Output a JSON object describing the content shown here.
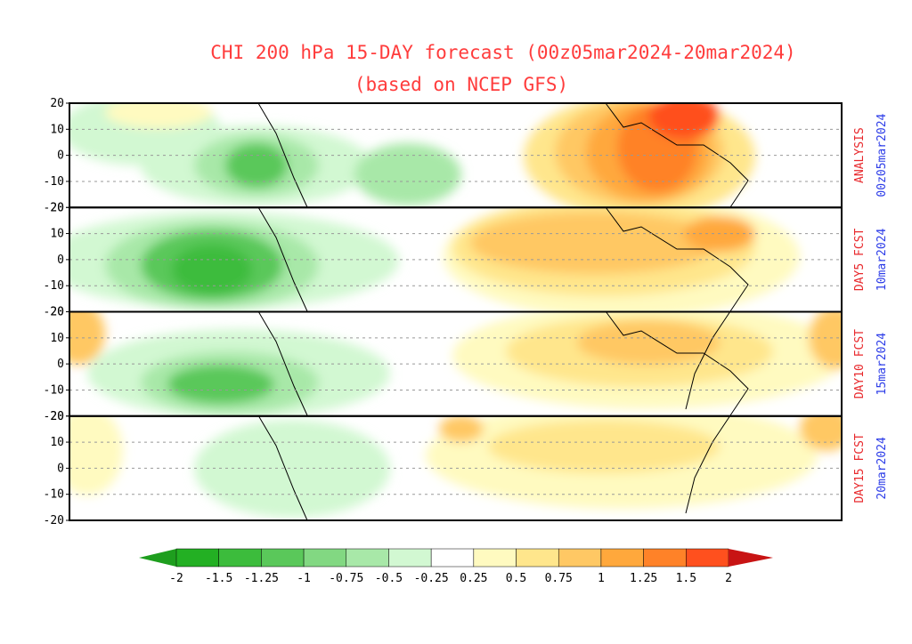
{
  "map": {
    "title": [
      "CHI 200 hPa 15-DAY forecast (00z05mar2024-20mar2024)",
      "(based on NCEP GFS)"
    ],
    "ylim": [
      -20,
      20
    ],
    "yticks": [
      20,
      10,
      0,
      -10,
      -20
    ],
    "panels": [
      {
        "label": "ANALYSIS",
        "date": "00z05mar2024"
      },
      {
        "label": "DAY5 FCST",
        "date": "10mar2024"
      },
      {
        "label": "DAY10 FCST",
        "date": "15mar2024"
      },
      {
        "label": "DAY15 FCST",
        "date": "20mar2024"
      }
    ],
    "colorbar": {
      "levels": [
        -2,
        -1.5,
        -1.25,
        -1,
        -0.75,
        -0.5,
        -0.25,
        0.25,
        0.5,
        0.75,
        1,
        1.25,
        1.5,
        2
      ],
      "colors": [
        "#1e9e1e",
        "#23b023",
        "#3cbc3c",
        "#5ac85a",
        "#82d882",
        "#a8e8a8",
        "#d2f8d2",
        "#ffffff",
        "#fffac0",
        "#ffe68c",
        "#ffc864",
        "#ffa83c",
        "#ff8228",
        "#ff501e",
        "#c81414"
      ]
    }
  }
}
